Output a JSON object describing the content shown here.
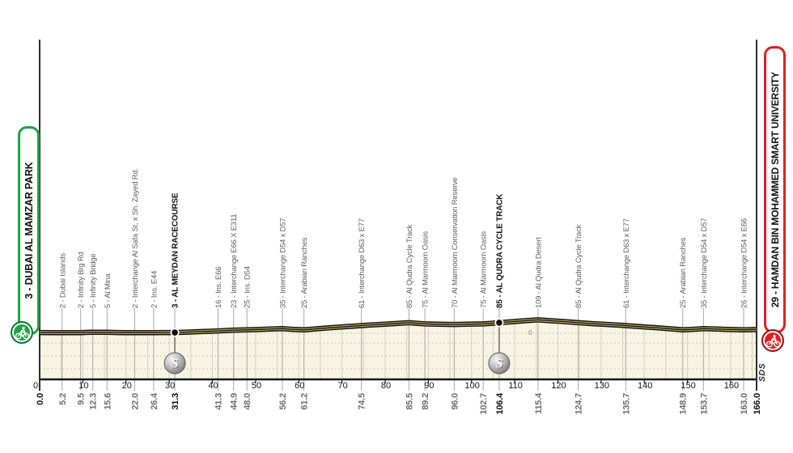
{
  "race": {
    "start_label": "3 - DUBAI AL MAMZAR PARK",
    "finish_label": "29 - HAMDAN BIN MOHAMMED SMART UNIVERSITY",
    "author_mark": "SDS",
    "elevation_zero_label": "0"
  },
  "colors": {
    "start_green": "#23a04b",
    "start_green_dark": "#0c7a30",
    "finish_red": "#e01f25",
    "finish_red_dark": "#a31016",
    "profile_fill": "#f7f4e3",
    "profile_stripe": "#b3a56a",
    "profile_dark": "#17130a",
    "grid_vertical": "#d7d3bf",
    "grid_dotted": "#bfbba6",
    "leader_line": "#a8a8a8",
    "axis_black": "#161616",
    "text_grey": "#5f5f5f",
    "km_grey": "#6e6e6e",
    "text_black": "#141414",
    "sprint_sphere": "#8a8a8a"
  },
  "chart_data": {
    "type": "area",
    "x_range": [
      0,
      166
    ],
    "axis_ticks": [
      0,
      10,
      20,
      30,
      40,
      50,
      60,
      70,
      80,
      90,
      100,
      110,
      120,
      130,
      140,
      150,
      160
    ],
    "start": {
      "km": 0.0,
      "elev": 3,
      "label": "3 - DUBAI AL MAMZAR PARK"
    },
    "finish": {
      "km": 166.0,
      "elev": 29,
      "label": "29 - HAMDAN BIN MOHAMMED SMART UNIVERSITY"
    },
    "waypoints": [
      {
        "km": 5.2,
        "elev": 2,
        "label": "2 - Dubai Islands"
      },
      {
        "km": 9.5,
        "elev": 2,
        "label": "2 - Infinity Brg Rd"
      },
      {
        "km": 12.3,
        "elev": 5,
        "label": "5 - Infinity Bridge"
      },
      {
        "km": 15.6,
        "elev": 5,
        "label": "5 - Al Mina"
      },
      {
        "km": 22.0,
        "elev": 2,
        "label": "2 - Interchange Al Safa St. x Sh. Zayed Rd."
      },
      {
        "km": 26.4,
        "elev": 2,
        "label": "2 - Ins. E44"
      },
      {
        "km": 31.3,
        "elev": 3,
        "label": "3 - AL MEYDAN RACECOURSE",
        "bold": true,
        "sprint": true
      },
      {
        "km": 41.3,
        "elev": 16,
        "label": "16 - Ins. E66"
      },
      {
        "km": 44.9,
        "elev": 23,
        "label": "23 - Interchange E66 X E311"
      },
      {
        "km": 48.0,
        "elev": 25,
        "label": "25 - Ins. D54"
      },
      {
        "km": 56.2,
        "elev": 35,
        "label": "35 - Interchange D54 x D57"
      },
      {
        "km": 61.2,
        "elev": 25,
        "label": "25 - Arabian Ranches"
      },
      {
        "km": 74.5,
        "elev": 61,
        "label": "61 - Interchange D63 x E77"
      },
      {
        "km": 85.5,
        "elev": 85,
        "label": "85 - Al Qudra Cycle Track"
      },
      {
        "km": 89.2,
        "elev": 75,
        "label": "75 - Al Marmoom Oasis"
      },
      {
        "km": 96.0,
        "elev": 70,
        "label": "70 - Al Marmoom Conservation Reserve"
      },
      {
        "km": 102.7,
        "elev": 75,
        "label": "75 - Al Marmoom Oasis"
      },
      {
        "km": 106.4,
        "elev": 85,
        "label": "85 - AL QUDRA CYCLE TRACK",
        "bold": true,
        "sprint": true
      },
      {
        "km": 115.4,
        "elev": 109,
        "label": "109 - Al Qudra Desert"
      },
      {
        "km": 124.7,
        "elev": 85,
        "label": "85 - Al Qudra Cycle Track"
      },
      {
        "km": 135.7,
        "elev": 61,
        "label": "61 - Interchange D63 x E77"
      },
      {
        "km": 148.9,
        "elev": 25,
        "label": "25 - Arabian Ranches"
      },
      {
        "km": 153.7,
        "elev": 35,
        "label": "35 - Interchange D54 x D57"
      },
      {
        "km": 163.0,
        "elev": 26,
        "label": "26 - Interchange D54 x E66"
      }
    ],
    "distance_markers": [
      {
        "km": 0.0,
        "bold": true
      },
      {
        "km": 5.2
      },
      {
        "km": 9.5
      },
      {
        "km": 12.3
      },
      {
        "km": 15.6
      },
      {
        "km": 22.0
      },
      {
        "km": 26.4
      },
      {
        "km": 31.3,
        "bold": true
      },
      {
        "km": 41.3
      },
      {
        "km": 44.9
      },
      {
        "km": 48.0
      },
      {
        "km": 56.2
      },
      {
        "km": 61.2
      },
      {
        "km": 74.5
      },
      {
        "km": 85.5
      },
      {
        "km": 89.2
      },
      {
        "km": 96.0
      },
      {
        "km": 102.7
      },
      {
        "km": 106.4,
        "bold": true
      },
      {
        "km": 115.4
      },
      {
        "km": 124.7
      },
      {
        "km": 135.7
      },
      {
        "km": 148.9
      },
      {
        "km": 153.7
      },
      {
        "km": 163.0
      },
      {
        "km": 166.0,
        "bold": true
      }
    ],
    "sprints": [
      {
        "km": 31.3
      },
      {
        "km": 106.4
      }
    ],
    "profile": [
      [
        0,
        3
      ],
      [
        3,
        2
      ],
      [
        5.2,
        2
      ],
      [
        7.5,
        2
      ],
      [
        9.5,
        2
      ],
      [
        11,
        4
      ],
      [
        12.3,
        5
      ],
      [
        14,
        5
      ],
      [
        15.6,
        5
      ],
      [
        18,
        3
      ],
      [
        20,
        2
      ],
      [
        22,
        2
      ],
      [
        24.5,
        2
      ],
      [
        26.4,
        2
      ],
      [
        29,
        3
      ],
      [
        31.3,
        3
      ],
      [
        34,
        6
      ],
      [
        37.5,
        11
      ],
      [
        41.3,
        16
      ],
      [
        44.9,
        23
      ],
      [
        48,
        25
      ],
      [
        51,
        29
      ],
      [
        54,
        33
      ],
      [
        56.2,
        35
      ],
      [
        58.5,
        30
      ],
      [
        61.2,
        25
      ],
      [
        64,
        34
      ],
      [
        67,
        42
      ],
      [
        70,
        50
      ],
      [
        72.5,
        56
      ],
      [
        74.5,
        61
      ],
      [
        77,
        67
      ],
      [
        80,
        73
      ],
      [
        83,
        80
      ],
      [
        85.5,
        85
      ],
      [
        87.5,
        80
      ],
      [
        89.2,
        75
      ],
      [
        92,
        72
      ],
      [
        96,
        70
      ],
      [
        99,
        72
      ],
      [
        102.7,
        75
      ],
      [
        104.5,
        80
      ],
      [
        106.4,
        85
      ],
      [
        109,
        92
      ],
      [
        112,
        101
      ],
      [
        115.4,
        109
      ],
      [
        118,
        102
      ],
      [
        121,
        95
      ],
      [
        124.7,
        85
      ],
      [
        128,
        77
      ],
      [
        131.5,
        70
      ],
      [
        135.7,
        61
      ],
      [
        139,
        52
      ],
      [
        142.5,
        44
      ],
      [
        145.5,
        35
      ],
      [
        148.9,
        25
      ],
      [
        151.3,
        30
      ],
      [
        153.7,
        35
      ],
      [
        156,
        33
      ],
      [
        158.5,
        30
      ],
      [
        160.5,
        28
      ],
      [
        163,
        26
      ],
      [
        166,
        29
      ]
    ]
  }
}
